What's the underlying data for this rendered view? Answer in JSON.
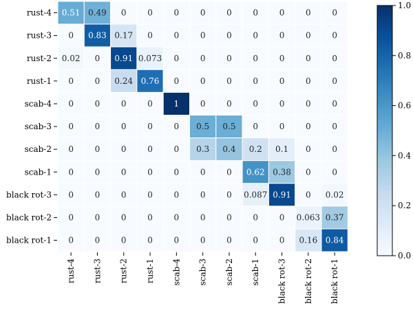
{
  "chart_data": {
    "type": "heatmap",
    "rows": [
      "rust-4",
      "rust-3",
      "rust-2",
      "rust-1",
      "scab-4",
      "scab-3",
      "scab-2",
      "scab-1",
      "black rot-3",
      "black rot-2",
      "black rot-1"
    ],
    "columns": [
      "rust-4",
      "rust-3",
      "rust-2",
      "rust-1",
      "scab-4",
      "scab-3",
      "scab-2",
      "scab-1",
      "black rot-3",
      "black rot-2",
      "black rot-1"
    ],
    "values": [
      [
        0.51,
        0.49,
        0,
        0,
        0,
        0,
        0,
        0,
        0,
        0,
        0
      ],
      [
        0,
        0.83,
        0.17,
        0,
        0,
        0,
        0,
        0,
        0,
        0,
        0
      ],
      [
        0.02,
        0,
        0.91,
        0.073,
        0,
        0,
        0,
        0,
        0,
        0,
        0
      ],
      [
        0,
        0,
        0.24,
        0.76,
        0,
        0,
        0,
        0,
        0,
        0,
        0
      ],
      [
        0,
        0,
        0,
        0,
        1,
        0,
        0,
        0,
        0,
        0,
        0
      ],
      [
        0,
        0,
        0,
        0,
        0,
        0.5,
        0.5,
        0,
        0,
        0,
        0
      ],
      [
        0,
        0,
        0,
        0,
        0,
        0.3,
        0.4,
        0.2,
        0.1,
        0,
        0
      ],
      [
        0,
        0,
        0,
        0,
        0,
        0,
        0,
        0.62,
        0.38,
        0,
        0
      ],
      [
        0,
        0,
        0,
        0,
        0,
        0,
        0,
        0.087,
        0.91,
        0,
        0.02
      ],
      [
        0,
        0,
        0,
        0,
        0,
        0,
        0,
        0,
        0,
        0.063,
        0.37
      ],
      [
        0,
        0,
        0,
        0,
        0,
        0,
        0,
        0,
        0,
        0.16,
        0.84
      ]
    ],
    "value_labels": [
      [
        "0.51",
        "0.49",
        "0",
        "0",
        "0",
        "0",
        "0",
        "0",
        "0",
        "0",
        "0"
      ],
      [
        "0",
        "0.83",
        "0.17",
        "0",
        "0",
        "0",
        "0",
        "0",
        "0",
        "0",
        "0"
      ],
      [
        "0.02",
        "0",
        "0.91",
        "0.073",
        "0",
        "0",
        "0",
        "0",
        "0",
        "0",
        "0"
      ],
      [
        "0",
        "0",
        "0.24",
        "0.76",
        "0",
        "0",
        "0",
        "0",
        "0",
        "0",
        "0"
      ],
      [
        "0",
        "0",
        "0",
        "0",
        "1",
        "0",
        "0",
        "0",
        "0",
        "0",
        "0"
      ],
      [
        "0",
        "0",
        "0",
        "0",
        "0",
        "0.5",
        "0.5",
        "0",
        "0",
        "0",
        "0"
      ],
      [
        "0",
        "0",
        "0",
        "0",
        "0",
        "0.3",
        "0.4",
        "0.2",
        "0.1",
        "0",
        "0"
      ],
      [
        "0",
        "0",
        "0",
        "0",
        "0",
        "0",
        "0",
        "0.62",
        "0.38",
        "0",
        "0"
      ],
      [
        "0",
        "0",
        "0",
        "0",
        "0",
        "0",
        "0",
        "0.087",
        "0.91",
        "0",
        "0.02"
      ],
      [
        "0",
        "0",
        "0",
        "0",
        "0",
        "0",
        "0",
        "0",
        "0",
        "0.063",
        "0.37"
      ],
      [
        "0",
        "0",
        "0",
        "0",
        "0",
        "0",
        "0",
        "0",
        "0",
        "0.16",
        "0.84"
      ]
    ],
    "title": "",
    "xlabel": "",
    "ylabel": "",
    "colorbar": {
      "range": [
        0.0,
        1.0
      ],
      "ticks": [
        "0.0",
        "0.2",
        "0.4",
        "0.6",
        "0.8",
        "1.0"
      ],
      "colormap": "Blues"
    },
    "colors": {
      "low": "#f7fbff",
      "high": "#08306b",
      "cell_border": "#ffffff"
    }
  }
}
